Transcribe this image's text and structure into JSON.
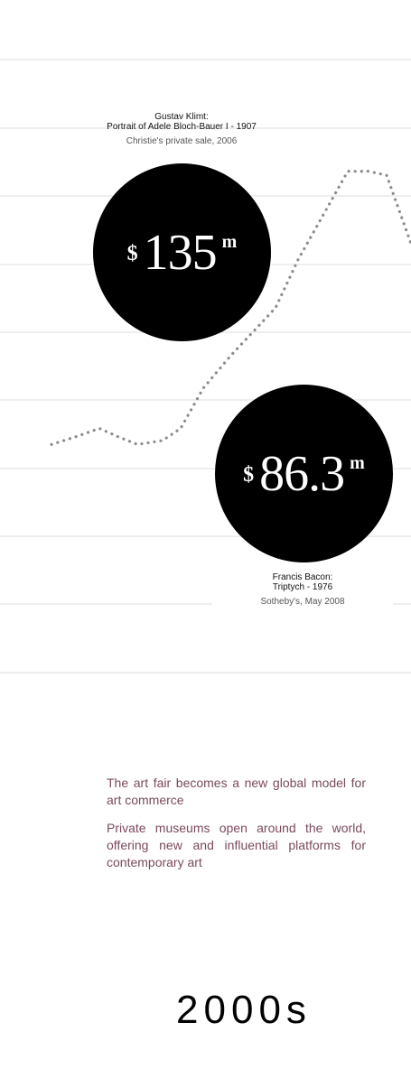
{
  "colors": {
    "gridline": "#dedede",
    "series_line": "#8c8c8c",
    "bubble": "#000000",
    "bubble_text": "#ffffff",
    "note_text": "#7a4a5e"
  },
  "chart_data": {
    "type": "line",
    "line_style": "dotted",
    "grid": true,
    "x": [
      0,
      1,
      2,
      3,
      4,
      5,
      6,
      7,
      8,
      9,
      10,
      11,
      12,
      13,
      14,
      15,
      16
    ],
    "values": [
      10,
      11,
      12,
      11,
      10,
      10.5,
      12,
      17,
      21,
      24,
      27,
      33,
      38,
      44,
      44,
      43.5,
      35
    ]
  },
  "annotations": {
    "klimt": {
      "title_line1": "Gustav Klimt:",
      "title_line2": "Portrait of Adele Bloch-Bauer I - 1907",
      "source": "Christie's private sale, 2006",
      "currency": "$",
      "value": "135",
      "unit": "m"
    },
    "bacon": {
      "title_line1": "Francis Bacon:",
      "title_line2": "Triptych - 1976",
      "source": "Sotheby's, May 2008",
      "currency": "$",
      "value": "86.3",
      "unit": "m"
    }
  },
  "notes": [
    "The art fair becomes a new global model for art commerce",
    "Private museums open around the world, offering new and influential platforms for contemporary art"
  ],
  "decade_label": "2000s"
}
